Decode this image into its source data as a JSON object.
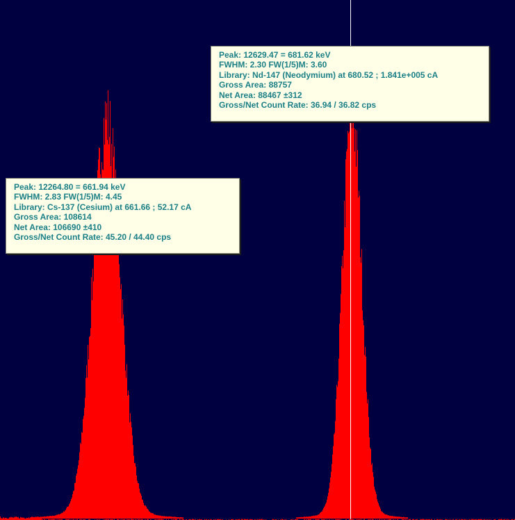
{
  "colors": {
    "background": "#000040",
    "peak_fill": "#ff0000",
    "cursor_line": "#ffffff",
    "callout_bg": "#ffffe8",
    "callout_text": "#1a7f86"
  },
  "peaks": [
    {
      "id": "cs137",
      "lines": [
        "Peak: 12264.80 = 661.94 keV",
        "FWHM: 2.83  FW(1/5)M: 4.45",
        "Library: Cs-137 (Cesium) at 661.66 ;  52.17 cA",
        "Gross Area: 108614",
        "Net Area: 106690 ±410",
        "Gross/Net Count Rate: 45.20 / 44.40 cps"
      ]
    },
    {
      "id": "nd147",
      "lines": [
        "Peak: 12629.47 = 681.62 keV",
        "FWHM: 2.30  FW(1/5)M: 3.60",
        "Library: Nd-147 (Neodymium) at 680.52 ;  1.841e+005 cA",
        "Gross Area: 88757",
        "Net Area: 88467 ±312",
        "Gross/Net Count Rate: 36.94 / 36.82 cps"
      ]
    }
  ]
}
